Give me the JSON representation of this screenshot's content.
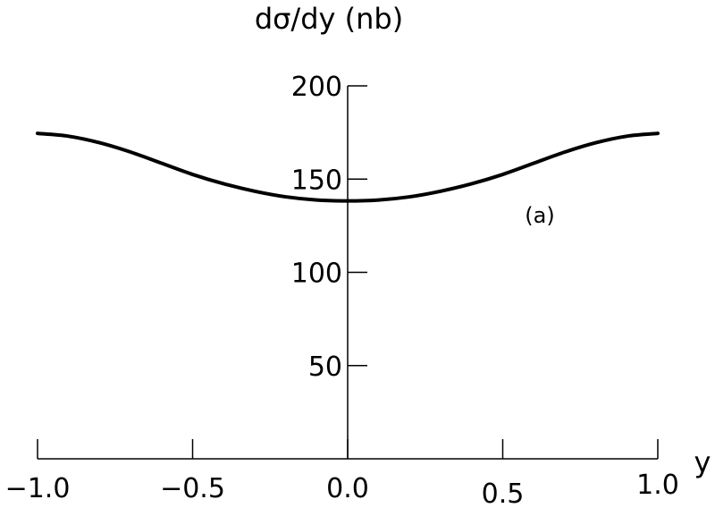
{
  "chart_data": {
    "type": "line",
    "title": "",
    "xlabel": "y",
    "ylabel": "dσ/dy (nb)",
    "annotation": "(a)",
    "xlim": [
      -1.0,
      1.0
    ],
    "ylim": [
      0,
      200
    ],
    "grid": false,
    "legend": "none",
    "x_ticks": [
      -1.0,
      -0.5,
      0.0,
      0.5,
      1.0
    ],
    "x_tick_labels": [
      "−1.0",
      "−0.5",
      "0.0",
      "0.5",
      "1.0"
    ],
    "y_ticks": [
      50,
      100,
      150,
      200
    ],
    "y_tick_labels": [
      "50",
      "100",
      "150",
      "200"
    ],
    "line_color": "#000000",
    "series": [
      {
        "x": [
          -1.0,
          -0.9,
          -0.8,
          -0.7,
          -0.6,
          -0.5,
          -0.4,
          -0.3,
          -0.2,
          -0.1,
          0.0,
          0.1,
          0.2,
          0.3,
          0.4,
          0.5,
          0.6,
          0.7,
          0.8,
          0.9,
          1.0
        ],
        "values": [
          174.5,
          173.0,
          169.5,
          164.5,
          158.5,
          152.5,
          147.5,
          143.5,
          140.5,
          138.8,
          138.3,
          138.8,
          140.5,
          143.5,
          147.5,
          152.5,
          158.5,
          164.5,
          169.5,
          173.0,
          174.5
        ]
      }
    ]
  }
}
